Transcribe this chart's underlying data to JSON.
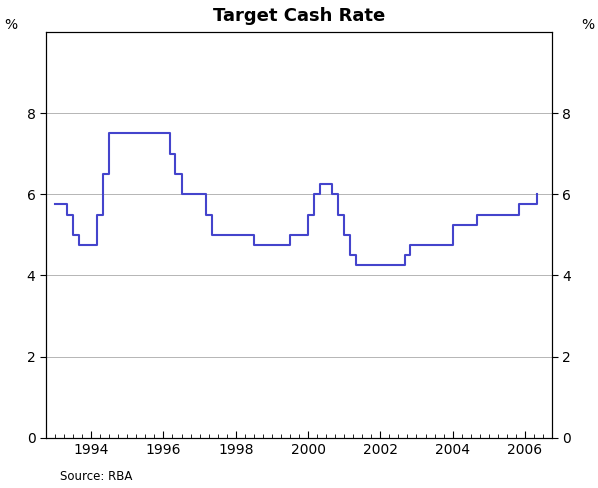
{
  "title": "Target Cash Rate",
  "ylabel_left": "%",
  "ylabel_right": "%",
  "source": "Source: RBA",
  "line_color": "#4444cc",
  "background_color": "#ffffff",
  "grid_color": "#aaaaaa",
  "ylim": [
    0,
    10
  ],
  "yticks": [
    0,
    2,
    4,
    6,
    8
  ],
  "xlim_start": 1992.75,
  "xlim_end": 2006.5,
  "xtick_years": [
    1994,
    1996,
    1998,
    2000,
    2002,
    2004,
    2006
  ],
  "dates": [
    1993.0,
    1993.17,
    1993.33,
    1993.5,
    1993.67,
    1993.83,
    1994.0,
    1994.17,
    1994.33,
    1994.5,
    1994.67,
    1994.83,
    1995.0,
    1995.17,
    1995.33,
    1995.5,
    1995.67,
    1995.83,
    1996.0,
    1996.17,
    1996.33,
    1996.5,
    1996.67,
    1996.83,
    1997.0,
    1997.17,
    1997.33,
    1997.5,
    1997.67,
    1997.83,
    1998.0,
    1998.17,
    1998.33,
    1998.5,
    1998.67,
    1998.83,
    1999.0,
    1999.17,
    1999.33,
    1999.5,
    1999.67,
    1999.83,
    2000.0,
    2000.17,
    2000.33,
    2000.5,
    2000.67,
    2000.83,
    2001.0,
    2001.17,
    2001.33,
    2001.5,
    2001.67,
    2001.83,
    2002.0,
    2002.17,
    2002.33,
    2002.5,
    2002.67,
    2002.83,
    2003.0,
    2003.17,
    2003.33,
    2003.5,
    2003.67,
    2003.83,
    2004.0,
    2004.17,
    2004.33,
    2004.5,
    2004.67,
    2004.83,
    2005.0,
    2005.17,
    2005.33,
    2005.5,
    2005.67,
    2005.83,
    2006.0,
    2006.17,
    2006.33
  ],
  "rates": [
    5.75,
    5.75,
    5.5,
    5.0,
    4.75,
    4.75,
    4.75,
    5.5,
    6.5,
    7.5,
    7.5,
    7.5,
    7.5,
    7.5,
    7.5,
    7.5,
    7.5,
    7.5,
    7.5,
    7.0,
    6.5,
    6.0,
    6.0,
    6.0,
    6.0,
    5.5,
    5.0,
    5.0,
    5.0,
    5.0,
    5.0,
    5.0,
    5.0,
    4.75,
    4.75,
    4.75,
    4.75,
    4.75,
    4.75,
    5.0,
    5.0,
    5.0,
    5.5,
    6.0,
    6.25,
    6.25,
    6.0,
    5.5,
    5.0,
    4.5,
    4.25,
    4.25,
    4.25,
    4.25,
    4.25,
    4.25,
    4.25,
    4.25,
    4.5,
    4.75,
    4.75,
    4.75,
    4.75,
    4.75,
    4.75,
    4.75,
    5.25,
    5.25,
    5.25,
    5.25,
    5.5,
    5.5,
    5.5,
    5.5,
    5.5,
    5.5,
    5.5,
    5.75,
    5.75,
    5.75,
    6.0
  ]
}
